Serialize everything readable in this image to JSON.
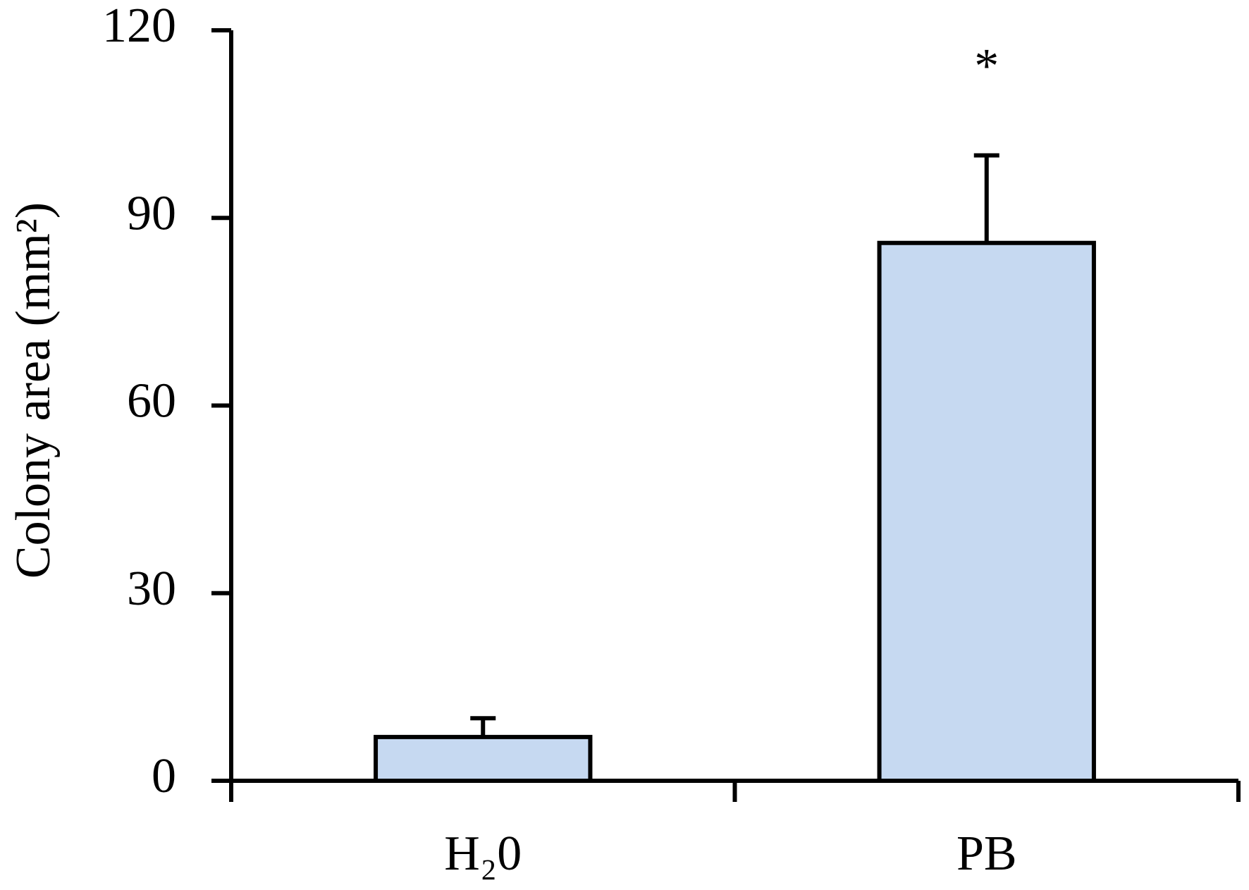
{
  "chart_data": {
    "type": "bar",
    "ylabel": "Colony area (mm²)",
    "categories": [
      "H₂0",
      "PB"
    ],
    "values": [
      7,
      86
    ],
    "errors": [
      3,
      14
    ],
    "significance": [
      null,
      "*"
    ],
    "color": "#c6d9f1",
    "ylim": [
      0,
      120
    ],
    "yticks": [
      0,
      30,
      60,
      90,
      120
    ]
  }
}
